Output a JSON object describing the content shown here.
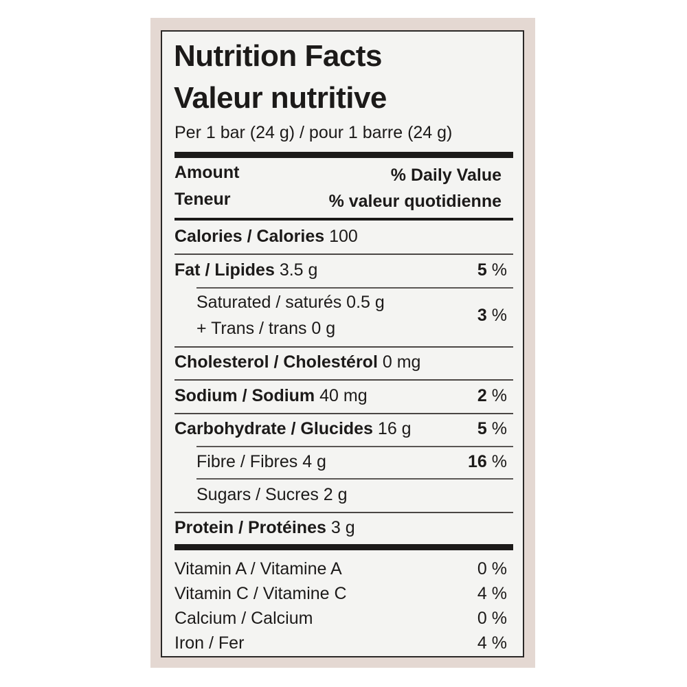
{
  "title_en": "Nutrition Facts",
  "title_fr": "Valeur nutritive",
  "serving": "Per 1 bar (24 g) / pour 1 barre (24 g)",
  "header": {
    "amount": "Amount",
    "teneur": "Teneur",
    "daily_value": "% Daily Value",
    "valeur_quotidienne": "% valeur quotidienne"
  },
  "calories": {
    "label": "Calories / Calories",
    "value": "100"
  },
  "fat": {
    "label": "Fat / Lipides",
    "value": "3.5 g",
    "pct_num": "5",
    "pct_sym": "%"
  },
  "saturated": {
    "label": "Saturated / saturés 0.5 g",
    "trans": "+ Trans / trans 0 g",
    "pct_num": "3",
    "pct_sym": "%"
  },
  "cholesterol": {
    "label": "Cholesterol / Cholestérol",
    "value": "0 mg"
  },
  "sodium": {
    "label": "Sodium / Sodium",
    "value": "40 mg",
    "pct_num": "2",
    "pct_sym": "%"
  },
  "carbohydrate": {
    "label": "Carbohydrate / Glucides",
    "value": "16 g",
    "pct_num": "5",
    "pct_sym": "%"
  },
  "fibre": {
    "label": "Fibre / Fibres 4 g",
    "pct_num": "16",
    "pct_sym": "%"
  },
  "sugars": {
    "label": "Sugars / Sucres 2 g"
  },
  "protein": {
    "label": "Protein / Protéines",
    "value": "3 g"
  },
  "vitamins": [
    {
      "label": "Vitamin A / Vitamine A",
      "pct": "0 %"
    },
    {
      "label": "Vitamin C / Vitamine C",
      "pct": "4 %"
    },
    {
      "label": "Calcium / Calcium",
      "pct": "0 %"
    },
    {
      "label": "Iron / Fer",
      "pct": "4 %"
    }
  ]
}
